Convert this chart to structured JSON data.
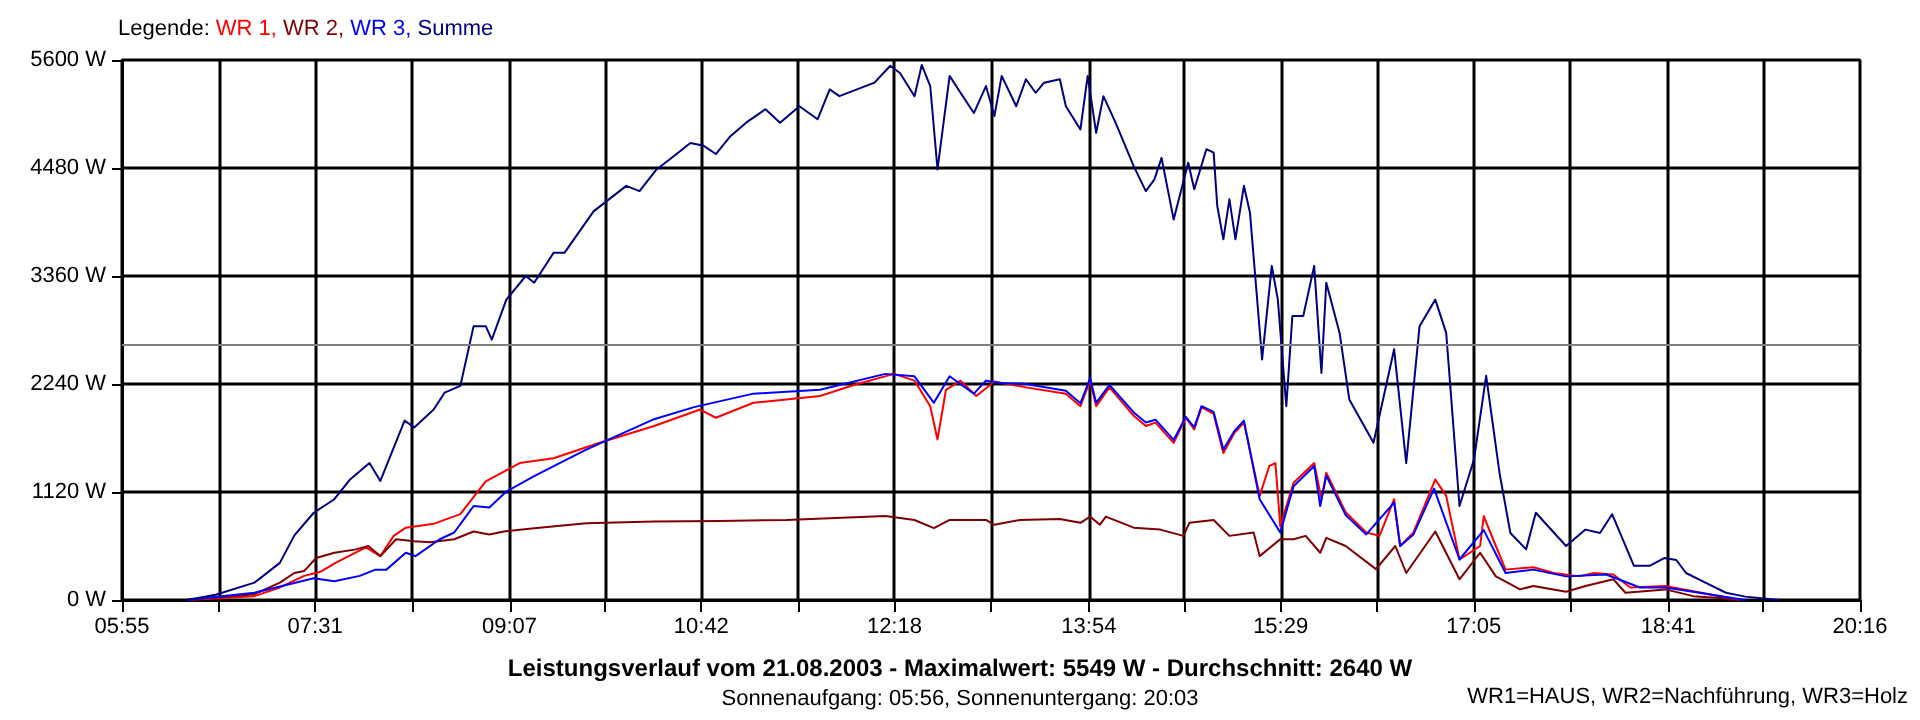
{
  "chart_data": {
    "type": "line",
    "title": "Leistungsverlauf vom 21.08.2003 - Maximalwert: 5549 W - Durchschnitt: 2640 W",
    "subtitle": "Sonnenaufgang: 05:56, Sonnenuntergang: 20:03",
    "legend_title": "Legende:",
    "annotations": [
      "WR1=HAUS, WR2=Nachführung, WR3=Holz"
    ],
    "xlim": [
      5.9167,
      20.2667
    ],
    "xticks": [
      {
        "value": 5.9167,
        "label": "05:55"
      },
      {
        "value": 6.7139,
        "label": null
      },
      {
        "value": 7.5111,
        "label": "07:31"
      },
      {
        "value": 8.3083,
        "label": null
      },
      {
        "value": 9.1167,
        "label": "09:07"
      },
      {
        "value": 9.9028,
        "label": null
      },
      {
        "value": 10.7,
        "label": "10:42"
      },
      {
        "value": 11.4972,
        "label": null
      },
      {
        "value": 12.2944,
        "label": "12:18"
      },
      {
        "value": 13.0917,
        "label": null
      },
      {
        "value": 13.9,
        "label": "13:54"
      },
      {
        "value": 14.6861,
        "label": null
      },
      {
        "value": 15.4833,
        "label": "15:29"
      },
      {
        "value": 16.2806,
        "label": null
      },
      {
        "value": 17.0778,
        "label": "17:05"
      },
      {
        "value": 17.875,
        "label": null
      },
      {
        "value": 18.6833,
        "label": "18:41"
      },
      {
        "value": 19.4694,
        "label": null
      },
      {
        "value": 20.2667,
        "label": "20:16"
      }
    ],
    "ylim": [
      0,
      5600
    ],
    "yticks": [
      {
        "value": 0,
        "label": "0 W"
      },
      {
        "value": 1120,
        "label": "1120 W"
      },
      {
        "value": 2240,
        "label": "2240 W"
      },
      {
        "value": 3360,
        "label": "3360 W"
      },
      {
        "value": 4480,
        "label": "4480 W"
      },
      {
        "value": 5600,
        "label": "5600 W"
      }
    ],
    "grid": true,
    "legend": "top left",
    "ref_lines": [
      {
        "axis": "y",
        "value": 2640,
        "color": "#808080"
      }
    ],
    "series": [
      {
        "name": "WR 1,",
        "color": "#ff0000",
        "x": [
          6.45,
          7.01,
          7.22,
          7.42,
          7.55,
          7.68,
          7.93,
          8.05,
          8.16,
          8.26,
          8.49,
          8.71,
          8.92,
          9.2,
          9.48,
          9.86,
          10.31,
          10.69,
          10.82,
          11.13,
          11.68,
          11.96,
          12.29,
          12.46,
          12.59,
          12.65,
          12.72,
          12.84,
          12.97,
          13.12,
          13.38,
          13.71,
          13.83,
          13.91,
          13.96,
          14.07,
          14.27,
          14.37,
          14.45,
          14.6,
          14.7,
          14.77,
          14.83,
          14.93,
          15.01,
          15.1,
          15.18,
          15.31,
          15.39,
          15.44,
          15.48,
          15.59,
          15.76,
          15.82,
          15.86,
          16.02,
          16.19,
          16.3,
          16.42,
          16.47,
          16.58,
          16.76,
          16.85,
          16.96,
          17.13,
          17.16,
          17.26,
          17.34,
          17.57,
          17.74,
          17.95,
          18.07,
          18.23,
          18.37,
          18.66,
          18.89,
          19.11,
          19.27
        ],
        "values": [
          0,
          40,
          130,
          250,
          290,
          385,
          545,
          455,
          665,
          750,
          790,
          890,
          1230,
          1420,
          1470,
          1630,
          1805,
          1975,
          1890,
          2045,
          2115,
          2230,
          2345,
          2275,
          2010,
          1665,
          2180,
          2275,
          2115,
          2265,
          2205,
          2140,
          2010,
          2275,
          2010,
          2205,
          1910,
          1805,
          1840,
          1630,
          1890,
          1770,
          2000,
          1930,
          1525,
          1730,
          1840,
          1080,
          1390,
          1420,
          765,
          1215,
          1420,
          1045,
          1320,
          910,
          700,
          665,
          1045,
          560,
          700,
          1250,
          1080,
          420,
          560,
          870,
          560,
          315,
          340,
          280,
          245,
          280,
          265,
          130,
          145,
          90,
          40,
          0
        ]
      },
      {
        "name": "WR 2,",
        "color": "#800000",
        "x": [
          6.45,
          7.01,
          7.22,
          7.34,
          7.42,
          7.52,
          7.67,
          7.85,
          7.95,
          8.05,
          8.18,
          8.33,
          8.46,
          8.66,
          8.82,
          8.95,
          9.07,
          9.32,
          9.75,
          10.31,
          10.85,
          11.4,
          12.22,
          12.46,
          12.62,
          12.75,
          13.05,
          13.12,
          13.33,
          13.66,
          13.83,
          13.91,
          13.99,
          14.04,
          14.27,
          14.49,
          14.68,
          14.73,
          14.93,
          15.06,
          15.26,
          15.31,
          15.48,
          15.59,
          15.69,
          15.81,
          15.86,
          16.02,
          16.27,
          16.43,
          16.52,
          16.76,
          16.96,
          17.13,
          17.26,
          17.46,
          17.57,
          17.84,
          18.0,
          18.23,
          18.33,
          18.66,
          18.89,
          19.11,
          19.22
        ],
        "values": [
          0,
          60,
          180,
          280,
          300,
          435,
          490,
          525,
          560,
          455,
          630,
          610,
          600,
          630,
          710,
          680,
          710,
          745,
          795,
          815,
          820,
          830,
          870,
          830,
          745,
          830,
          830,
          780,
          830,
          840,
          800,
          865,
          780,
          865,
          750,
          730,
          665,
          800,
          830,
          665,
          700,
          455,
          630,
          630,
          665,
          490,
          645,
          560,
          320,
          560,
          280,
          710,
          215,
          490,
          245,
          110,
          145,
          85,
          145,
          215,
          75,
          110,
          40,
          20,
          0
        ]
      },
      {
        "name": "WR 3,",
        "color": "#0000ff",
        "x": [
          6.45,
          7.01,
          7.5,
          7.67,
          7.88,
          8.01,
          8.1,
          8.26,
          8.34,
          8.54,
          8.66,
          8.82,
          8.95,
          9.09,
          9.32,
          9.53,
          9.75,
          10.31,
          10.64,
          11.13,
          11.68,
          12.22,
          12.46,
          12.62,
          12.75,
          12.95,
          13.05,
          13.17,
          13.38,
          13.71,
          13.83,
          13.91,
          13.96,
          14.07,
          14.27,
          14.37,
          14.45,
          14.6,
          14.7,
          14.77,
          14.83,
          14.93,
          15.01,
          15.1,
          15.18,
          15.31,
          15.48,
          15.59,
          15.76,
          15.81,
          15.86,
          16.02,
          16.19,
          16.42,
          16.47,
          16.58,
          16.75,
          16.96,
          17.16,
          17.34,
          17.57,
          17.84,
          18.17,
          18.45,
          18.66,
          18.94,
          19.16,
          19.32
        ],
        "values": [
          0,
          75,
          225,
          195,
          250,
          315,
          315,
          490,
          455,
          630,
          700,
          975,
          960,
          1125,
          1285,
          1420,
          1560,
          1875,
          2000,
          2140,
          2180,
          2345,
          2320,
          2045,
          2320,
          2140,
          2275,
          2250,
          2240,
          2170,
          2040,
          2300,
          2045,
          2230,
          1945,
          1840,
          1870,
          1660,
          1900,
          1790,
          2010,
          1950,
          1560,
          1750,
          1860,
          1045,
          700,
          1180,
          1390,
          975,
          1290,
          880,
          680,
          1010,
          560,
          680,
          1155,
          420,
          725,
          280,
          315,
          245,
          265,
          130,
          130,
          75,
          30,
          0
        ]
      },
      {
        "name": "Summe",
        "color": "#000080",
        "x": [
          6.45,
          6.69,
          7.01,
          7.22,
          7.34,
          7.5,
          7.67,
          7.8,
          7.96,
          8.05,
          8.25,
          8.33,
          8.49,
          8.58,
          8.71,
          8.82,
          8.92,
          8.97,
          9.09,
          9.25,
          9.32,
          9.48,
          9.57,
          9.81,
          10.08,
          10.19,
          10.33,
          10.44,
          10.61,
          10.72,
          10.82,
          10.94,
          11.07,
          11.23,
          11.35,
          11.51,
          11.66,
          11.76,
          11.84,
          12.13,
          12.26,
          12.34,
          12.46,
          12.52,
          12.59,
          12.65,
          12.75,
          12.84,
          12.95,
          13.05,
          13.12,
          13.18,
          13.3,
          13.38,
          13.46,
          13.53,
          13.66,
          13.71,
          13.83,
          13.89,
          13.96,
          14.02,
          14.12,
          14.27,
          14.37,
          14.44,
          14.5,
          14.6,
          14.72,
          14.77,
          14.87,
          14.93,
          14.96,
          15.01,
          15.06,
          15.11,
          15.18,
          15.23,
          15.33,
          15.41,
          15.46,
          15.53,
          15.58,
          15.67,
          15.76,
          15.82,
          15.86,
          15.97,
          16.05,
          16.25,
          16.42,
          16.52,
          16.63,
          16.76,
          16.85,
          16.96,
          17.08,
          17.18,
          17.29,
          17.38,
          17.51,
          17.59,
          17.84,
          18.0,
          18.12,
          18.22,
          18.4,
          18.53,
          18.65,
          18.75,
          18.83,
          18.99,
          19.16,
          19.32,
          19.6
        ],
        "values": [
          0,
          55,
          180,
          385,
          670,
          905,
          1045,
          1250,
          1420,
          1235,
          1860,
          1790,
          1975,
          2150,
          2220,
          2840,
          2840,
          2700,
          3115,
          3360,
          3290,
          3600,
          3600,
          4030,
          4295,
          4240,
          4465,
          4570,
          4740,
          4710,
          4625,
          4810,
          4950,
          5090,
          4950,
          5120,
          4985,
          5295,
          5225,
          5365,
          5540,
          5465,
          5225,
          5549,
          5330,
          4465,
          5435,
          5260,
          5050,
          5330,
          5020,
          5435,
          5120,
          5400,
          5260,
          5365,
          5400,
          5120,
          4880,
          5435,
          4845,
          5225,
          4950,
          4500,
          4240,
          4360,
          4585,
          3945,
          4535,
          4260,
          4675,
          4640,
          4085,
          3740,
          4155,
          3740,
          4295,
          4015,
          2495,
          3465,
          3115,
          2010,
          2945,
          2945,
          3465,
          2355,
          3290,
          2770,
          2080,
          1630,
          2600,
          1420,
          2840,
          3115,
          2770,
          975,
          1460,
          2325,
          1320,
          695,
          525,
          905,
          560,
          730,
          695,
          890,
          355,
          355,
          435,
          415,
          280,
          180,
          75,
          35,
          0
        ]
      }
    ]
  }
}
